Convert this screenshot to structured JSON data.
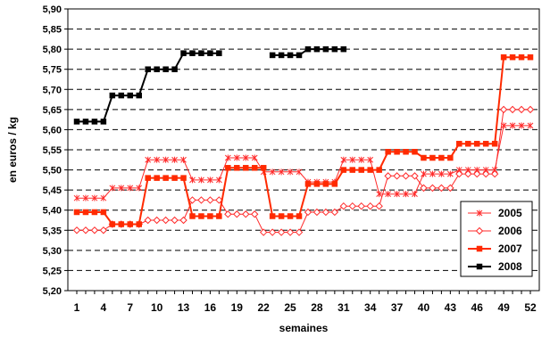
{
  "chart_data": {
    "type": "line",
    "xlabel": "semaines",
    "ylabel": "en euros / kg",
    "ylim": [
      5.2,
      5.9
    ],
    "ystep": 0.05,
    "decimal_separator": ",",
    "xlim": [
      1,
      52
    ],
    "xticks": [
      1,
      4,
      7,
      10,
      13,
      16,
      19,
      22,
      25,
      28,
      31,
      34,
      37,
      40,
      43,
      46,
      49,
      52
    ],
    "grid": "horizontal dashed",
    "legend_position": "bottom-right",
    "x": [
      1,
      2,
      3,
      4,
      5,
      6,
      7,
      8,
      9,
      10,
      11,
      12,
      13,
      14,
      15,
      16,
      17,
      18,
      19,
      20,
      21,
      22,
      23,
      24,
      25,
      26,
      27,
      28,
      29,
      30,
      31,
      32,
      33,
      34,
      35,
      36,
      37,
      38,
      39,
      40,
      41,
      42,
      43,
      44,
      45,
      46,
      47,
      48,
      49,
      50,
      51,
      52
    ],
    "series": [
      {
        "name": "2005",
        "color": "#ff2a2a",
        "marker": "star",
        "values": [
          5.43,
          5.43,
          5.43,
          5.43,
          5.455,
          5.455,
          5.455,
          5.455,
          5.525,
          5.525,
          5.525,
          5.525,
          5.525,
          5.475,
          5.475,
          5.475,
          5.475,
          5.53,
          5.53,
          5.53,
          5.53,
          5.495,
          5.495,
          5.495,
          5.495,
          5.495,
          5.47,
          5.47,
          5.47,
          5.47,
          5.525,
          5.525,
          5.525,
          5.525,
          5.44,
          5.44,
          5.44,
          5.44,
          5.44,
          5.49,
          5.49,
          5.49,
          5.49,
          5.5,
          5.5,
          5.5,
          5.5,
          5.5,
          5.61,
          5.61,
          5.61,
          5.61
        ]
      },
      {
        "name": "2006",
        "color": "#ff2a2a",
        "marker": "diamond-open",
        "values": [
          5.35,
          5.35,
          5.35,
          5.35,
          5.365,
          5.365,
          5.365,
          5.365,
          5.375,
          5.375,
          5.375,
          5.375,
          5.375,
          5.425,
          5.425,
          5.425,
          5.425,
          5.39,
          5.39,
          5.39,
          5.39,
          5.345,
          5.345,
          5.345,
          5.345,
          5.345,
          5.395,
          5.395,
          5.395,
          5.395,
          5.41,
          5.41,
          5.41,
          5.41,
          5.41,
          5.485,
          5.485,
          5.485,
          5.485,
          5.455,
          5.455,
          5.455,
          5.455,
          5.49,
          5.49,
          5.49,
          5.49,
          5.49,
          5.65,
          5.65,
          5.65,
          5.65
        ]
      },
      {
        "name": "2007",
        "color": "#ff2a00",
        "marker": "square",
        "values": [
          5.395,
          5.395,
          5.395,
          5.395,
          5.365,
          5.365,
          5.365,
          5.365,
          5.48,
          5.48,
          5.48,
          5.48,
          5.48,
          5.385,
          5.385,
          5.385,
          5.385,
          5.505,
          5.505,
          5.505,
          5.505,
          5.505,
          5.385,
          5.385,
          5.385,
          5.385,
          5.465,
          5.465,
          5.465,
          5.465,
          5.5,
          5.5,
          5.5,
          5.5,
          5.5,
          5.545,
          5.545,
          5.545,
          5.545,
          5.53,
          5.53,
          5.53,
          5.53,
          5.565,
          5.565,
          5.565,
          5.565,
          5.565,
          5.78,
          5.78,
          5.78,
          5.78
        ]
      },
      {
        "name": "2008",
        "color": "#000000",
        "marker": "square",
        "values": [
          5.62,
          5.62,
          5.62,
          5.62,
          5.685,
          5.685,
          5.685,
          5.685,
          5.75,
          5.75,
          5.75,
          5.75,
          5.79,
          5.79,
          5.79,
          5.79,
          5.79,
          null,
          null,
          null,
          null,
          null,
          5.785,
          5.785,
          5.785,
          5.785,
          5.8,
          5.8,
          5.8,
          5.8,
          5.8,
          null,
          null,
          null,
          null,
          null,
          null,
          null,
          null,
          null,
          null,
          null,
          null,
          null,
          null,
          null,
          null,
          null,
          null,
          null,
          null,
          null
        ]
      }
    ]
  }
}
